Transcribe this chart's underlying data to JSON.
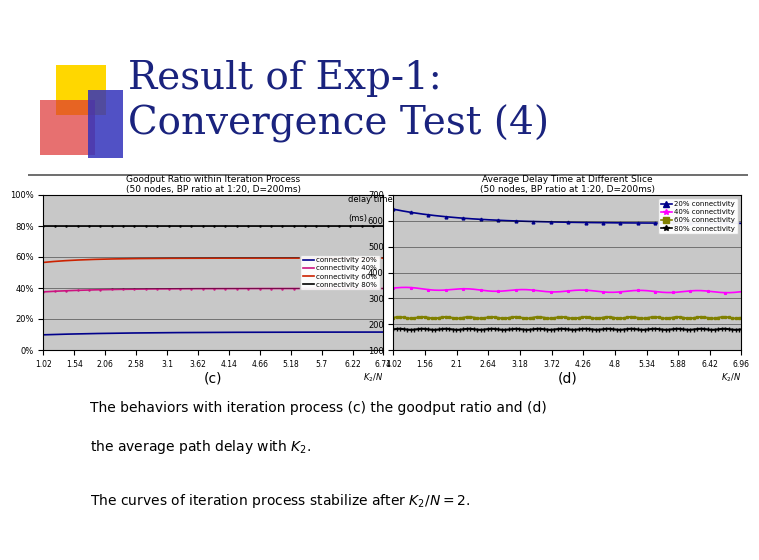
{
  "title_line1": "Result of Exp-1:",
  "title_line2": "Convergence Test (4)",
  "title_color": "#1a237e",
  "bg_color": "#ffffff",
  "plot_c_title": "Goodput Ratio within Iteration Process",
  "plot_c_subtitle": "(50 nodes, BP ratio at 1:20, D=200ms)",
  "plot_c_xlim": [
    1.02,
    6.74
  ],
  "plot_c_ylim": [
    0.0,
    1.0
  ],
  "plot_c_yticks": [
    0.0,
    0.2,
    0.4,
    0.6,
    0.8,
    1.0
  ],
  "plot_c_ytick_labels": [
    "0%",
    "20%",
    "40%",
    "60%",
    "80%",
    "100%"
  ],
  "plot_c_xtick_labels": [
    "1.02",
    "1.54",
    "2.06",
    "2.58",
    "3.1",
    "3.62",
    "4.14",
    "4.66",
    "5.18",
    "5.7",
    "6.22",
    "6.74"
  ],
  "plot_c_bg": "#c8c8c8",
  "plot_c_caption": "(c)",
  "plot_d_title": "Average Delay Time at Different Slice",
  "plot_d_subtitle": "(50 nodes, BP ratio at 1:20, D=200ms)",
  "plot_d_ylabel_top": "delay time",
  "plot_d_ylabel_units": "(ms)",
  "plot_d_xlim": [
    1.02,
    6.96
  ],
  "plot_d_ylim": [
    100,
    700
  ],
  "plot_d_yticks": [
    100,
    200,
    300,
    400,
    500,
    600,
    700
  ],
  "plot_d_ytick_labels": [
    "100",
    "200",
    "300",
    "400",
    "500",
    "600",
    "700"
  ],
  "plot_d_xtick_labels": [
    "1.02",
    "1.56",
    "2.1",
    "2.64",
    "3.18",
    "3.72",
    "4.26",
    "4.8",
    "5.34",
    "5.88",
    "6.42",
    "6.96"
  ],
  "plot_d_bg": "#c8c8c8",
  "plot_d_caption": "(d)",
  "c_conn20_color": "#00008b",
  "c_conn40_color": "#cc1480",
  "c_conn60_color": "#cc2200",
  "c_conn80_color": "#000000",
  "c_conn20_label": "connectivity 20%",
  "c_conn40_label": "connectivity 40%",
  "c_conn60_label": "connectivity 60%",
  "c_conn80_label": "connectivity 80%",
  "d_conn20_color": "#00008b",
  "d_conn40_color": "#ff00ff",
  "d_conn60_color": "#808000",
  "d_conn80_color": "#000000",
  "d_conn20_label": "20% connectivity",
  "d_conn40_label": "40% connectivity",
  "d_conn60_label": "60% connectivity",
  "d_conn80_label": "80% connectivity",
  "decoration": {
    "yellow": "#FFD700",
    "red_pink": "#dd3333",
    "blue": "#3333bb"
  }
}
